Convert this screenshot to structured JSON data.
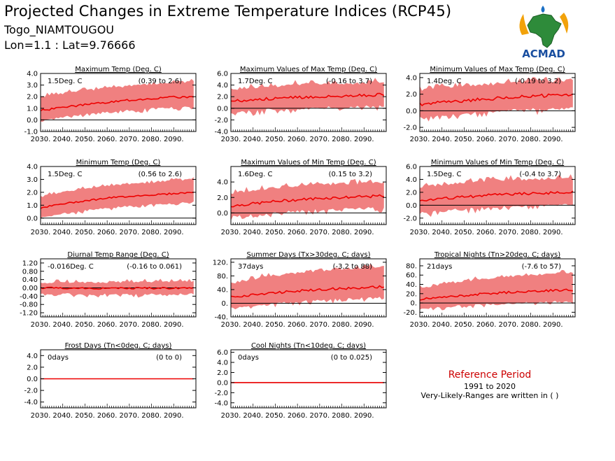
{
  "header": {
    "title": "Projected Changes in Extreme Temperature Indices (RCP45)",
    "station": "Togo_NIAMTOUGOU",
    "coords": "Lon=1.1 : Lat=9.76666"
  },
  "logo": {
    "text": "ACMAD"
  },
  "reference": {
    "title": "Reference Period",
    "years": "1991 to 2020",
    "note": "Very-Likely-Ranges are written in ( )"
  },
  "colors": {
    "band": "#f08080",
    "median": "#ee0000",
    "axis": "#000000",
    "zero": "#000000"
  },
  "chart_data": [
    {
      "type": "area",
      "title": "Maximum Temp (Deg. C)",
      "summary": "1.5Deg. C",
      "range": "(0.39 to 2.6)",
      "x": [
        2030,
        2040,
        2050,
        2060,
        2070,
        2080,
        2090,
        2099
      ],
      "x_ticks": [
        "2030.",
        "2040.",
        "2050.",
        "2060.",
        "2070.",
        "2080.",
        "2090."
      ],
      "ylim": [
        -1.0,
        4.0
      ],
      "y_ticks": [
        {
          "v": 4.0,
          "label": "4.0"
        },
        {
          "v": 3.0,
          "label": "3.0"
        },
        {
          "v": 2.0,
          "label": "2.0"
        },
        {
          "v": 1.0,
          "label": "1.0"
        },
        {
          "v": 0.0,
          "label": "0.0"
        },
        {
          "v": -1.0,
          "label": "-1.0"
        }
      ],
      "median": [
        0.8,
        1.1,
        1.3,
        1.5,
        1.7,
        1.85,
        1.95,
        2.0
      ],
      "low": [
        0.0,
        0.35,
        0.55,
        0.75,
        0.9,
        1.05,
        1.15,
        1.2
      ],
      "high": [
        1.9,
        2.2,
        2.45,
        2.65,
        2.85,
        3.0,
        3.1,
        3.2
      ],
      "noise": 0.35
    },
    {
      "type": "area",
      "title": "Maximum Values of Max Temp (Deg. C)",
      "summary": "1.7Deg. C",
      "range": "(-0.16 to 3.7)",
      "x": [
        2030,
        2040,
        2050,
        2060,
        2070,
        2080,
        2090,
        2099
      ],
      "x_ticks": [
        "2030.",
        "2040.",
        "2050.",
        "2060.",
        "2070.",
        "2080.",
        "2090."
      ],
      "ylim": [
        -4.0,
        6.0
      ],
      "y_ticks": [
        {
          "v": 6.0,
          "label": "6.0"
        },
        {
          "v": 4.0,
          "label": "4.0"
        },
        {
          "v": 2.0,
          "label": "2.0"
        },
        {
          "v": 0.0,
          "label": "0.0"
        },
        {
          "v": -2.0,
          "label": "-2.0"
        },
        {
          "v": -4.0,
          "label": "-4.0"
        }
      ],
      "median": [
        1.2,
        1.5,
        1.7,
        1.9,
        2.0,
        2.1,
        2.2,
        2.4
      ],
      "low": [
        -0.6,
        -0.2,
        0.0,
        0.2,
        0.3,
        0.4,
        0.5,
        0.6
      ],
      "high": [
        3.0,
        3.3,
        3.6,
        3.8,
        3.9,
        4.0,
        4.1,
        4.3
      ],
      "noise": 1.0
    },
    {
      "type": "area",
      "title": "Minimum Values of Max Temp (Deg. C)",
      "summary": "1.4Deg. C",
      "range": "(-0.19 to 3.2)",
      "x": [
        2030,
        2040,
        2050,
        2060,
        2070,
        2080,
        2090,
        2099
      ],
      "x_ticks": [
        "2030.",
        "2040.",
        "2050.",
        "2060.",
        "2070.",
        "2080.",
        "2090."
      ],
      "ylim": [
        -2.5,
        4.5
      ],
      "y_ticks": [
        {
          "v": 4.0,
          "label": "4.0"
        },
        {
          "v": 2.0,
          "label": "2.0"
        },
        {
          "v": 0.0,
          "label": "0.0"
        },
        {
          "v": -2.0,
          "label": "-2.0"
        }
      ],
      "median": [
        0.8,
        1.0,
        1.2,
        1.4,
        1.6,
        1.75,
        1.85,
        1.9
      ],
      "low": [
        -0.7,
        -0.4,
        -0.2,
        0.0,
        0.2,
        0.35,
        0.4,
        0.5
      ],
      "high": [
        2.3,
        2.6,
        2.8,
        3.0,
        3.2,
        3.3,
        3.4,
        3.5
      ],
      "noise": 0.8
    },
    {
      "type": "area",
      "title": "Minimum Temp (Deg. C)",
      "summary": "1.5Deg. C",
      "range": "(0.56 to 2.6)",
      "x": [
        2030,
        2040,
        2050,
        2060,
        2070,
        2080,
        2090,
        2099
      ],
      "x_ticks": [
        "2030.",
        "2040.",
        "2050.",
        "2060.",
        "2070.",
        "2080.",
        "2090."
      ],
      "ylim": [
        -0.5,
        4.0
      ],
      "y_ticks": [
        {
          "v": 4.0,
          "label": "4.0"
        },
        {
          "v": 3.0,
          "label": "3.0"
        },
        {
          "v": 2.0,
          "label": "2.0"
        },
        {
          "v": 1.0,
          "label": "1.0"
        },
        {
          "v": 0.0,
          "label": "0.0"
        }
      ],
      "median": [
        0.8,
        1.1,
        1.35,
        1.55,
        1.7,
        1.8,
        1.9,
        2.0
      ],
      "low": [
        0.1,
        0.4,
        0.65,
        0.85,
        1.0,
        1.1,
        1.2,
        1.3
      ],
      "high": [
        1.6,
        1.95,
        2.2,
        2.4,
        2.6,
        2.7,
        2.85,
        2.95
      ],
      "noise": 0.25
    },
    {
      "type": "area",
      "title": "Maximum Values of Min Temp (Deg. C)",
      "summary": "1.6Deg. C",
      "range": "(0.15 to 3.2)",
      "x": [
        2030,
        2040,
        2050,
        2060,
        2070,
        2080,
        2090,
        2099
      ],
      "x_ticks": [
        "2030.",
        "2040.",
        "2050.",
        "2060.",
        "2070.",
        "2080.",
        "2090."
      ],
      "ylim": [
        -1.5,
        6.0
      ],
      "y_ticks": [
        {
          "v": 4.0,
          "label": "4.0"
        },
        {
          "v": 2.0,
          "label": "2.0"
        },
        {
          "v": 0.0,
          "label": "0.0"
        }
      ],
      "median": [
        0.9,
        1.2,
        1.5,
        1.7,
        1.9,
        2.0,
        2.1,
        2.2
      ],
      "low": [
        -0.4,
        -0.1,
        0.2,
        0.4,
        0.55,
        0.65,
        0.75,
        0.8
      ],
      "high": [
        2.4,
        2.8,
        3.1,
        3.3,
        3.5,
        3.6,
        3.7,
        3.8
      ],
      "noise": 0.7
    },
    {
      "type": "area",
      "title": "Minimum Values of Min Temp (Deg. C)",
      "summary": "1.5Deg. C",
      "range": "(-0.4 to 3.7)",
      "x": [
        2030,
        2040,
        2050,
        2060,
        2070,
        2080,
        2090,
        2099
      ],
      "x_ticks": [
        "2030.",
        "2040.",
        "2050.",
        "2060.",
        "2070.",
        "2080.",
        "2090."
      ],
      "ylim": [
        -3.0,
        6.0
      ],
      "y_ticks": [
        {
          "v": 6.0,
          "label": "6.0"
        },
        {
          "v": 4.0,
          "label": "4.0"
        },
        {
          "v": 2.0,
          "label": "2.0"
        },
        {
          "v": 0.0,
          "label": "0.0"
        },
        {
          "v": -2.0,
          "label": "-2.0"
        }
      ],
      "median": [
        0.7,
        1.0,
        1.3,
        1.5,
        1.7,
        1.85,
        1.95,
        2.0
      ],
      "low": [
        -1.0,
        -0.7,
        -0.4,
        -0.2,
        0.0,
        0.1,
        0.2,
        0.3
      ],
      "high": [
        2.6,
        3.0,
        3.3,
        3.5,
        3.7,
        3.8,
        3.9,
        4.0
      ],
      "noise": 0.9
    },
    {
      "type": "area",
      "title": "Diurnal Temp Range (Deg. C)",
      "summary": "-0.016Deg. C",
      "range": "(-0.16 to 0.061)",
      "x": [
        2030,
        2040,
        2050,
        2060,
        2070,
        2080,
        2090,
        2099
      ],
      "x_ticks": [
        "2030.",
        "2040.",
        "2050.",
        "2060.",
        "2070.",
        "2080.",
        "2090."
      ],
      "ylim": [
        -1.4,
        1.4
      ],
      "y_ticks": [
        {
          "v": 1.2,
          "label": "1.20"
        },
        {
          "v": 0.8,
          "label": "0.80"
        },
        {
          "v": 0.4,
          "label": "0.40"
        },
        {
          "v": 0.0,
          "label": "0.00"
        },
        {
          "v": -0.4,
          "label": "-0.40"
        },
        {
          "v": -0.8,
          "label": "-0.80"
        },
        {
          "v": -1.2,
          "label": "-1.20"
        }
      ],
      "median": [
        0.0,
        -0.01,
        -0.02,
        -0.02,
        -0.02,
        -0.02,
        -0.01,
        0.0
      ],
      "low": [
        -0.25,
        -0.25,
        -0.26,
        -0.27,
        -0.27,
        -0.27,
        -0.26,
        -0.25
      ],
      "high": [
        0.2,
        0.21,
        0.22,
        0.23,
        0.24,
        0.24,
        0.25,
        0.25
      ],
      "noise": 0.18
    },
    {
      "type": "area",
      "title": "Summer Days (Tx>30deg. C; days)",
      "summary": "37days",
      "range": "(-3.2 to 88)",
      "x": [
        2030,
        2040,
        2050,
        2060,
        2070,
        2080,
        2090,
        2099
      ],
      "x_ticks": [
        "2030.",
        "2040.",
        "2050.",
        "2060.",
        "2070.",
        "2080.",
        "2090."
      ],
      "ylim": [
        -40,
        130
      ],
      "y_ticks": [
        {
          "v": 120,
          "label": "120."
        },
        {
          "v": 80,
          "label": "80."
        },
        {
          "v": 40,
          "label": "40."
        },
        {
          "v": 0,
          "label": "0."
        },
        {
          "v": -40,
          "label": "-40."
        }
      ],
      "median": [
        18,
        25,
        31,
        36,
        40,
        43,
        46,
        48
      ],
      "low": [
        -12,
        -5,
        2,
        8,
        12,
        15,
        18,
        20
      ],
      "high": [
        55,
        68,
        78,
        85,
        92,
        96,
        100,
        103
      ],
      "noise": 14
    },
    {
      "type": "area",
      "title": "Tropical Nights (Tn>20deg. C; days)",
      "summary": "21days",
      "range": "(-7.6 to 57)",
      "x": [
        2030,
        2040,
        2050,
        2060,
        2070,
        2080,
        2090,
        2099
      ],
      "x_ticks": [
        "2030.",
        "2040.",
        "2050.",
        "2060.",
        "2070.",
        "2080.",
        "2090."
      ],
      "ylim": [
        -30,
        95
      ],
      "y_ticks": [
        {
          "v": 80,
          "label": "80."
        },
        {
          "v": 60,
          "label": "60."
        },
        {
          "v": 40,
          "label": "40."
        },
        {
          "v": 20,
          "label": "20."
        },
        {
          "v": 0,
          "label": "0."
        },
        {
          "v": -20,
          "label": "-20."
        }
      ],
      "median": [
        8,
        12,
        16,
        20,
        23,
        25,
        27,
        28
      ],
      "low": [
        -10,
        -7,
        -4,
        -1,
        1,
        3,
        5,
        6
      ],
      "high": [
        30,
        38,
        45,
        50,
        55,
        58,
        61,
        63
      ],
      "noise": 9
    },
    {
      "type": "area",
      "title": "Frost Days (Tn<0deg. C; days)",
      "summary": "0days",
      "range": "(0 to 0)",
      "x": [
        2030,
        2040,
        2050,
        2060,
        2070,
        2080,
        2090,
        2099
      ],
      "x_ticks": [
        "2030.",
        "2040.",
        "2050.",
        "2060.",
        "2070.",
        "2080.",
        "2090."
      ],
      "ylim": [
        -5.0,
        5.0
      ],
      "y_ticks": [
        {
          "v": 4.0,
          "label": "4.0"
        },
        {
          "v": 2.0,
          "label": "2.0"
        },
        {
          "v": 0.0,
          "label": "0.0"
        },
        {
          "v": -2.0,
          "label": "-2.0"
        },
        {
          "v": -4.0,
          "label": "-4.0"
        }
      ],
      "median": [
        0,
        0,
        0,
        0,
        0,
        0,
        0,
        0
      ],
      "low": [
        0,
        0,
        0,
        0,
        0,
        0,
        0,
        0
      ],
      "high": [
        0,
        0,
        0,
        0,
        0,
        0,
        0,
        0
      ],
      "noise": 0
    },
    {
      "type": "area",
      "title": "Cool Nights (Tn<10deg. C; days)",
      "summary": "0days",
      "range": "(0 to 0.025)",
      "x": [
        2030,
        2040,
        2050,
        2060,
        2070,
        2080,
        2090,
        2099
      ],
      "x_ticks": [
        "2030.",
        "2040.",
        "2050.",
        "2060.",
        "2070.",
        "2080.",
        "2090."
      ],
      "ylim": [
        -5.0,
        6.5
      ],
      "y_ticks": [
        {
          "v": 6.0,
          "label": "6.0"
        },
        {
          "v": 4.0,
          "label": "4.0"
        },
        {
          "v": 2.0,
          "label": "2.0"
        },
        {
          "v": 0.0,
          "label": "0.0"
        },
        {
          "v": -2.0,
          "label": "-2.0"
        },
        {
          "v": -4.0,
          "label": "-4.0"
        }
      ],
      "median": [
        0,
        0,
        0,
        0,
        0,
        0,
        0,
        0
      ],
      "low": [
        0,
        0,
        0,
        0,
        0,
        0,
        0,
        0
      ],
      "high": [
        0,
        0,
        0,
        0,
        0,
        0,
        0,
        0
      ],
      "noise": 0
    }
  ]
}
